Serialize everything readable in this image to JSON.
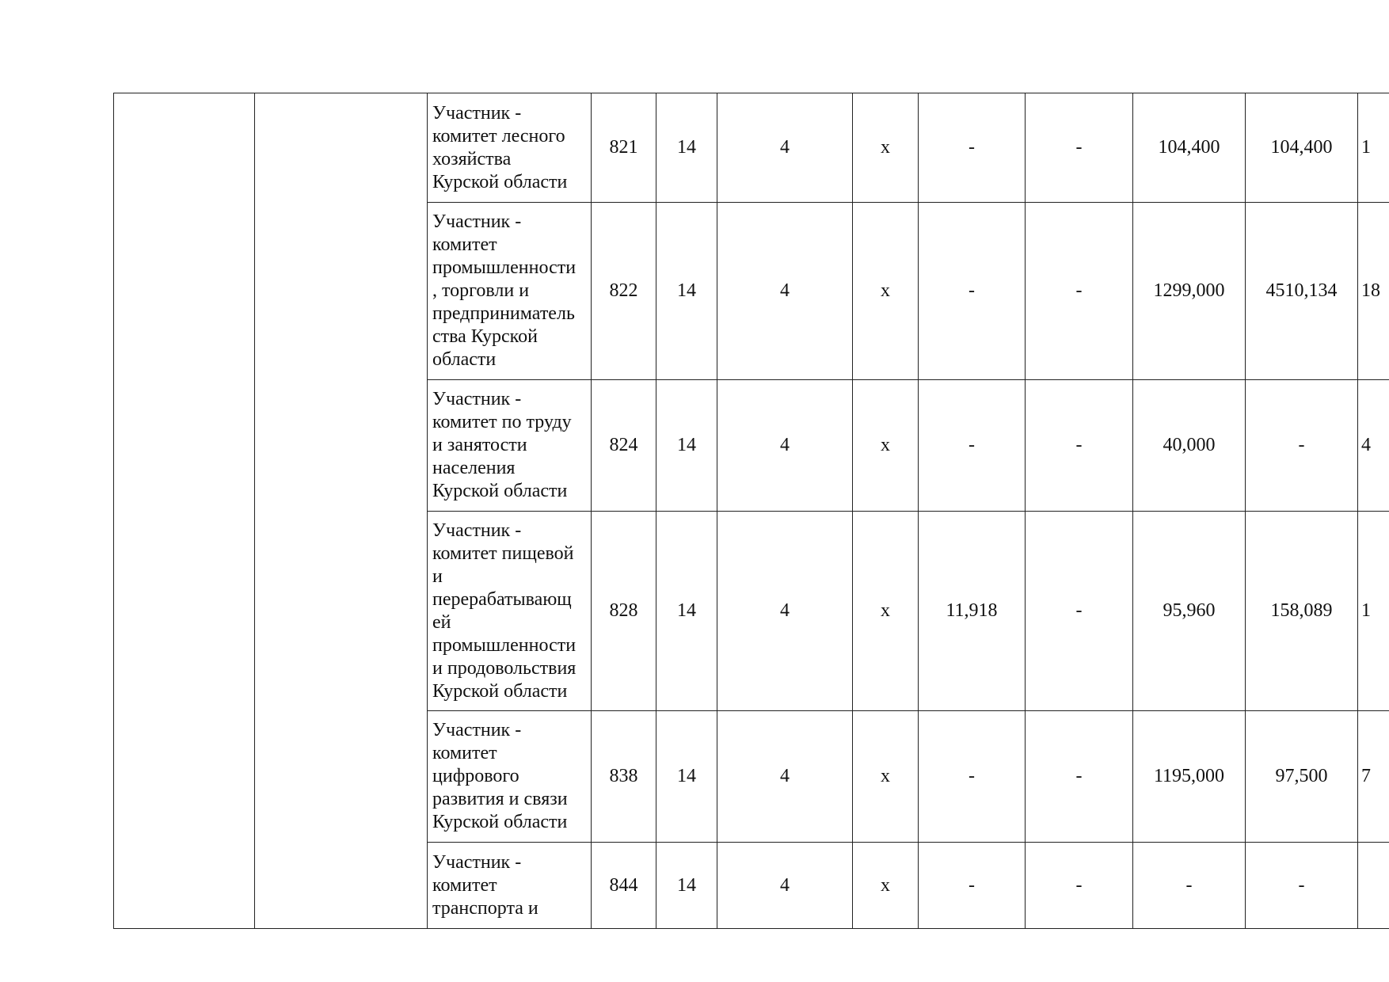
{
  "table": {
    "rows": [
      {
        "participant": [
          "Участник -",
          "комитет лесного",
          "хозяйства",
          "Курской области"
        ],
        "cells": [
          "821",
          "14",
          "4",
          "x",
          "-",
          "-",
          "104,400",
          "104,400",
          "1"
        ]
      },
      {
        "participant": [
          "Участник -",
          "комитет",
          "промышленности",
          ", торговли и",
          "предприниматель",
          "ства Курской",
          "области"
        ],
        "cells": [
          "822",
          "14",
          "4",
          "x",
          "-",
          "-",
          "1299,000",
          "4510,134",
          "18"
        ]
      },
      {
        "participant": [
          "Участник -",
          "комитет по труду",
          "и занятости",
          "населения",
          "Курской области"
        ],
        "cells": [
          "824",
          "14",
          "4",
          "x",
          "-",
          "-",
          "40,000",
          "-",
          "4"
        ]
      },
      {
        "participant": [
          "Участник -",
          "комитет пищевой",
          "и",
          "перерабатывающ",
          "ей",
          "промышленности",
          "и продовольствия",
          "Курской области"
        ],
        "cells": [
          "828",
          "14",
          "4",
          "x",
          "11,918",
          "-",
          "95,960",
          "158,089",
          "1"
        ]
      },
      {
        "participant": [
          "Участник -",
          "комитет",
          "цифрового",
          "развития и связи",
          "Курской области"
        ],
        "cells": [
          "838",
          "14",
          "4",
          "x",
          "-",
          "-",
          "1195,000",
          "97,500",
          "7"
        ]
      },
      {
        "participant": [
          "Участник -",
          "комитет",
          "транспорта и"
        ],
        "cells": [
          "844",
          "14",
          "4",
          "x",
          "-",
          "-",
          "-",
          "-"
        ]
      }
    ]
  }
}
